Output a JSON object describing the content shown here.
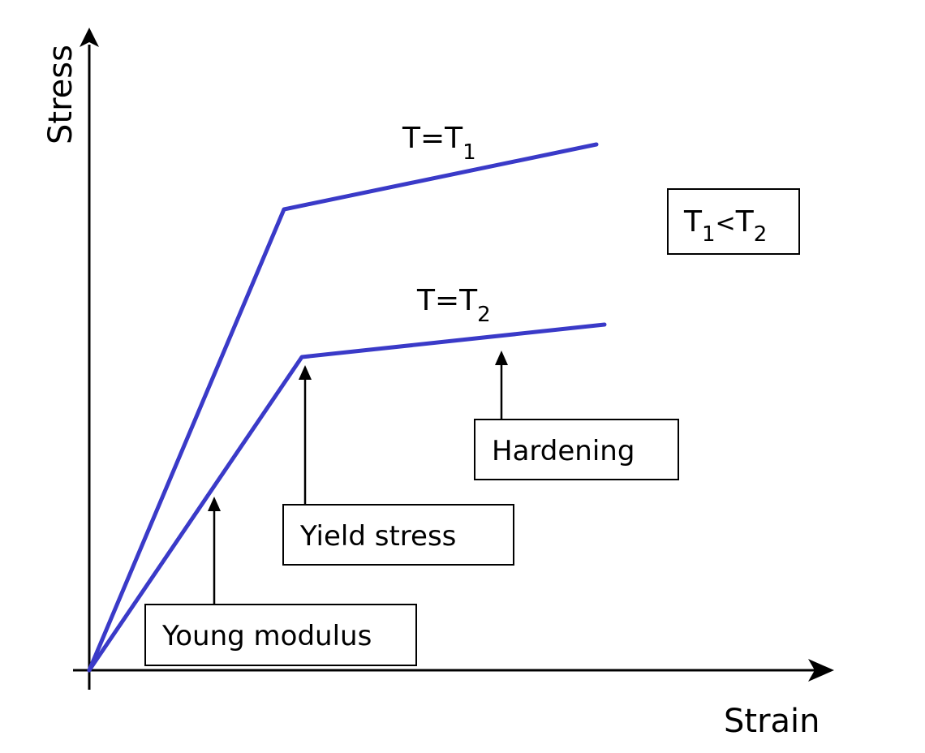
{
  "axes": {
    "x_label": "Strain",
    "y_label": "Stress"
  },
  "curves": [
    {
      "id": "t1",
      "label_main": "T=T",
      "label_sub": "1"
    },
    {
      "id": "t2",
      "label_main": "T=T",
      "label_sub": "2"
    }
  ],
  "condition": {
    "t": "T",
    "sub1": "1",
    "lt": "<",
    "sub2": "2"
  },
  "annotations": {
    "young": "Young modulus",
    "yield": "Yield stress",
    "hardening": "Hardening"
  },
  "colors": {
    "curve": "#3a3ac8",
    "axis": "#000000",
    "background": "#ffffff"
  }
}
